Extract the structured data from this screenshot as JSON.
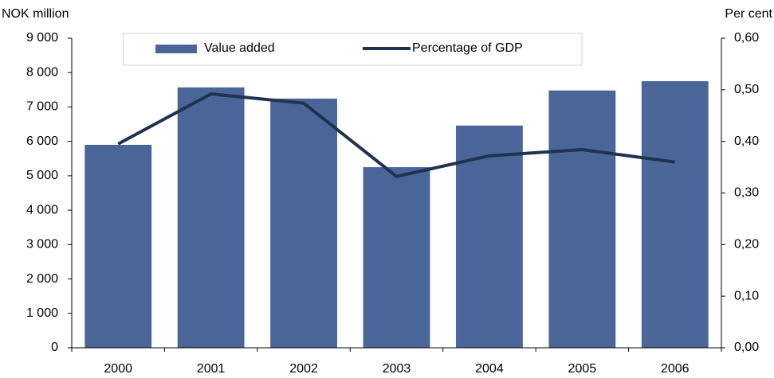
{
  "chart_data": {
    "type": "bar",
    "y_label": "NOK million",
    "y2_label": "Per cent",
    "categories": [
      "2000",
      "2001",
      "2002",
      "2003",
      "2004",
      "2005",
      "2006"
    ],
    "series": [
      {
        "name": "Value added",
        "color": "#4a6699",
        "values": [
          5900,
          7570,
          7245,
          5250,
          6460,
          7480,
          7750
        ]
      },
      {
        "name": "Percentage of GDP",
        "type": "line",
        "axis": "y2",
        "color": "#1f3350",
        "values": [
          0.395,
          0.492,
          0.474,
          0.332,
          0.372,
          0.384,
          0.36
        ]
      }
    ],
    "ylim": [
      0,
      9000
    ],
    "yticks": [
      {
        "value": 0,
        "label": "0"
      },
      {
        "value": 1000,
        "label": "1 000"
      },
      {
        "value": 2000,
        "label": "2 000"
      },
      {
        "value": 3000,
        "label": "3 000"
      },
      {
        "value": 4000,
        "label": "4 000"
      },
      {
        "value": 5000,
        "label": "5 000"
      },
      {
        "value": 6000,
        "label": "6 000"
      },
      {
        "value": 7000,
        "label": "7 000"
      },
      {
        "value": 8000,
        "label": "8 000"
      },
      {
        "value": 9000,
        "label": "9 000"
      }
    ],
    "y2lim": [
      0,
      0.6
    ],
    "y2ticks": [
      {
        "value": 0,
        "label": "0,00"
      },
      {
        "value": 0.1,
        "label": "0,10"
      },
      {
        "value": 0.2,
        "label": "0,20"
      },
      {
        "value": 0.3,
        "label": "0,30"
      },
      {
        "value": 0.4,
        "label": "0,40"
      },
      {
        "value": 0.5,
        "label": "0,50"
      },
      {
        "value": 0.6,
        "label": "0,60"
      }
    ],
    "grid": false,
    "legend": "top"
  }
}
